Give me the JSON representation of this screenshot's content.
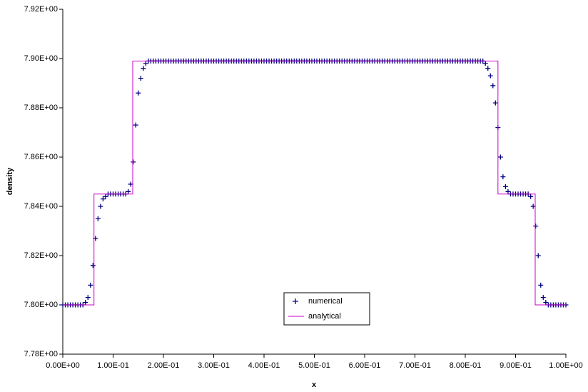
{
  "chart_data": {
    "type": "scatter",
    "x_label": "x",
    "y_label": "density",
    "xlim": [
      0,
      1
    ],
    "ylim": [
      7.78,
      7.92
    ],
    "xticks": [
      {
        "value": 0,
        "label": "0.00E+00"
      },
      {
        "value": 0.1,
        "label": "1.00E-01"
      },
      {
        "value": 0.2,
        "label": "2.00E-01"
      },
      {
        "value": 0.3,
        "label": "3.00E-01"
      },
      {
        "value": 0.4,
        "label": "4.00E-01"
      },
      {
        "value": 0.5,
        "label": "5.00E-01"
      },
      {
        "value": 0.6,
        "label": "6.00E-01"
      },
      {
        "value": 0.7,
        "label": "7.00E-01"
      },
      {
        "value": 0.8,
        "label": "8.00E-01"
      },
      {
        "value": 0.9,
        "label": "9.00E-01"
      },
      {
        "value": 1,
        "label": "1.00E+00"
      }
    ],
    "yticks": [
      {
        "value": 7.78,
        "label": "7.78E+00"
      },
      {
        "value": 7.8,
        "label": "7.80E+00"
      },
      {
        "value": 7.82,
        "label": "7.82E+00"
      },
      {
        "value": 7.84,
        "label": "7.84E+00"
      },
      {
        "value": 7.86,
        "label": "7.86E+00"
      },
      {
        "value": 7.88,
        "label": "7.88E+00"
      },
      {
        "value": 7.9,
        "label": "7.90E+00"
      },
      {
        "value": 7.92,
        "label": "7.92E+00"
      }
    ],
    "series": [
      {
        "name": "numerical",
        "kind": "marker",
        "color": "#000080",
        "x": [
          0,
          0.005,
          0.01,
          0.015,
          0.02,
          0.025,
          0.03,
          0.035,
          0.04,
          0.045,
          0.05,
          0.055,
          0.06,
          0.065,
          0.07,
          0.075,
          0.08,
          0.085,
          0.09,
          0.095,
          0.1,
          0.105,
          0.11,
          0.115,
          0.12,
          0.125,
          0.13,
          0.135,
          0.14,
          0.145,
          0.15,
          0.155,
          0.16,
          0.165,
          0.17,
          0.175,
          0.18,
          0.185,
          0.19,
          0.195,
          0.2,
          0.205,
          0.21,
          0.215,
          0.22,
          0.225,
          0.23,
          0.235,
          0.24,
          0.245,
          0.25,
          0.255,
          0.26,
          0.265,
          0.27,
          0.275,
          0.28,
          0.285,
          0.29,
          0.295,
          0.3,
          0.305,
          0.31,
          0.315,
          0.32,
          0.325,
          0.33,
          0.335,
          0.34,
          0.345,
          0.35,
          0.355,
          0.36,
          0.365,
          0.37,
          0.375,
          0.38,
          0.385,
          0.39,
          0.395,
          0.4,
          0.405,
          0.41,
          0.415,
          0.42,
          0.425,
          0.43,
          0.435,
          0.44,
          0.445,
          0.45,
          0.455,
          0.46,
          0.465,
          0.47,
          0.475,
          0.48,
          0.485,
          0.49,
          0.495,
          0.5,
          0.505,
          0.51,
          0.515,
          0.52,
          0.525,
          0.53,
          0.535,
          0.54,
          0.545,
          0.55,
          0.555,
          0.56,
          0.565,
          0.57,
          0.575,
          0.58,
          0.585,
          0.59,
          0.595,
          0.6,
          0.605,
          0.61,
          0.615,
          0.62,
          0.625,
          0.63,
          0.635,
          0.64,
          0.645,
          0.65,
          0.655,
          0.66,
          0.665,
          0.67,
          0.675,
          0.68,
          0.685,
          0.69,
          0.695,
          0.7,
          0.705,
          0.71,
          0.715,
          0.72,
          0.725,
          0.73,
          0.735,
          0.74,
          0.745,
          0.75,
          0.755,
          0.76,
          0.765,
          0.77,
          0.775,
          0.78,
          0.785,
          0.79,
          0.795,
          0.8,
          0.805,
          0.81,
          0.815,
          0.82,
          0.825,
          0.83,
          0.835,
          0.84,
          0.845,
          0.85,
          0.855,
          0.86,
          0.865,
          0.87,
          0.875,
          0.88,
          0.885,
          0.89,
          0.895,
          0.9,
          0.905,
          0.91,
          0.915,
          0.92,
          0.925,
          0.93,
          0.935,
          0.94,
          0.945,
          0.95,
          0.955,
          0.96,
          0.965,
          0.97,
          0.975,
          0.98,
          0.985,
          0.99,
          0.995,
          1
        ],
        "values": [
          7.8,
          7.8,
          7.8,
          7.8,
          7.8,
          7.8,
          7.8,
          7.8,
          7.8,
          7.801,
          7.803,
          7.808,
          7.816,
          7.827,
          7.835,
          7.84,
          7.843,
          7.844,
          7.845,
          7.845,
          7.845,
          7.845,
          7.845,
          7.845,
          7.845,
          7.845,
          7.846,
          7.849,
          7.858,
          7.873,
          7.886,
          7.892,
          7.896,
          7.898,
          7.899,
          7.899,
          7.899,
          7.899,
          7.899,
          7.899,
          7.899,
          7.899,
          7.899,
          7.899,
          7.899,
          7.899,
          7.899,
          7.899,
          7.899,
          7.899,
          7.899,
          7.899,
          7.899,
          7.899,
          7.899,
          7.899,
          7.899,
          7.899,
          7.899,
          7.899,
          7.899,
          7.899,
          7.899,
          7.899,
          7.899,
          7.899,
          7.899,
          7.899,
          7.899,
          7.899,
          7.899,
          7.899,
          7.899,
          7.899,
          7.899,
          7.899,
          7.899,
          7.899,
          7.899,
          7.899,
          7.899,
          7.899,
          7.899,
          7.899,
          7.899,
          7.899,
          7.899,
          7.899,
          7.899,
          7.899,
          7.899,
          7.899,
          7.899,
          7.899,
          7.899,
          7.899,
          7.899,
          7.899,
          7.899,
          7.899,
          7.899,
          7.899,
          7.899,
          7.899,
          7.899,
          7.899,
          7.899,
          7.899,
          7.899,
          7.899,
          7.899,
          7.899,
          7.899,
          7.899,
          7.899,
          7.899,
          7.899,
          7.899,
          7.899,
          7.899,
          7.899,
          7.899,
          7.899,
          7.899,
          7.899,
          7.899,
          7.899,
          7.899,
          7.899,
          7.899,
          7.899,
          7.899,
          7.899,
          7.899,
          7.899,
          7.899,
          7.899,
          7.899,
          7.899,
          7.899,
          7.899,
          7.899,
          7.899,
          7.899,
          7.899,
          7.899,
          7.899,
          7.899,
          7.899,
          7.899,
          7.899,
          7.899,
          7.899,
          7.899,
          7.899,
          7.899,
          7.899,
          7.899,
          7.899,
          7.899,
          7.899,
          7.899,
          7.899,
          7.899,
          7.899,
          7.899,
          7.899,
          7.899,
          7.898,
          7.896,
          7.893,
          7.889,
          7.882,
          7.872,
          7.86,
          7.852,
          7.848,
          7.846,
          7.845,
          7.845,
          7.845,
          7.845,
          7.845,
          7.845,
          7.845,
          7.845,
          7.844,
          7.84,
          7.832,
          7.82,
          7.808,
          7.803,
          7.801,
          7.8,
          7.8,
          7.8,
          7.8,
          7.8,
          7.8,
          7.8,
          7.8
        ]
      },
      {
        "name": "analytical",
        "kind": "line",
        "color": "#cc00cc",
        "x": [
          0,
          0.062,
          0.062,
          0.139,
          0.139,
          0.865,
          0.865,
          0.939,
          0.939,
          1
        ],
        "values": [
          7.8,
          7.8,
          7.845,
          7.845,
          7.899,
          7.899,
          7.845,
          7.845,
          7.8,
          7.8
        ]
      }
    ]
  }
}
